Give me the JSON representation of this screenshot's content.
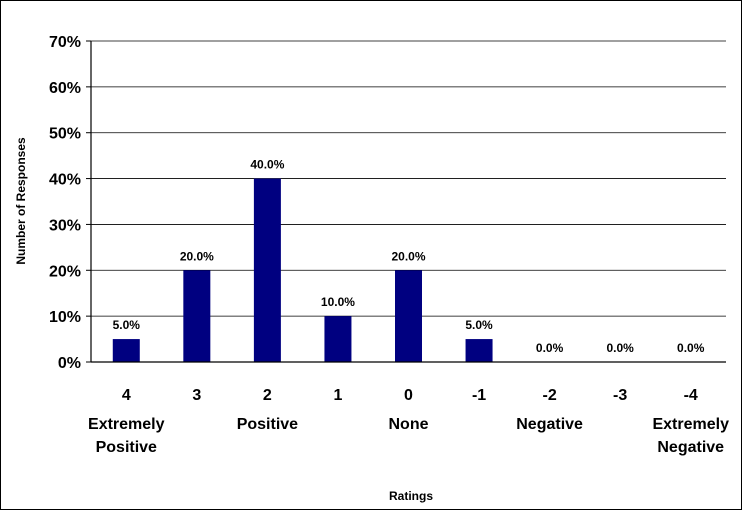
{
  "chart_data": {
    "type": "bar",
    "title": "",
    "xlabel": "Ratings",
    "ylabel": "Number of Responses",
    "ylim": [
      0,
      70
    ],
    "y_ticks": [
      "0%",
      "10%",
      "20%",
      "30%",
      "40%",
      "50%",
      "60%",
      "70%"
    ],
    "grid": "horizontal",
    "legend": "none",
    "bar_color": "#000080",
    "categories": [
      {
        "value": "4",
        "label": "Extremely Positive"
      },
      {
        "value": "3",
        "label": ""
      },
      {
        "value": "2",
        "label": "Positive"
      },
      {
        "value": "1",
        "label": ""
      },
      {
        "value": "0",
        "label": "None"
      },
      {
        "value": "-1",
        "label": ""
      },
      {
        "value": "-2",
        "label": "Negative"
      },
      {
        "value": "-3",
        "label": ""
      },
      {
        "value": "-4",
        "label": "Extremely Negative"
      }
    ],
    "values": [
      5.0,
      20.0,
      40.0,
      10.0,
      20.0,
      5.0,
      0.0,
      0.0,
      0.0
    ],
    "data_labels": [
      "5.0%",
      "20.0%",
      "40.0%",
      "10.0%",
      "20.0%",
      "5.0%",
      "0.0%",
      "0.0%",
      "0.0%"
    ]
  }
}
